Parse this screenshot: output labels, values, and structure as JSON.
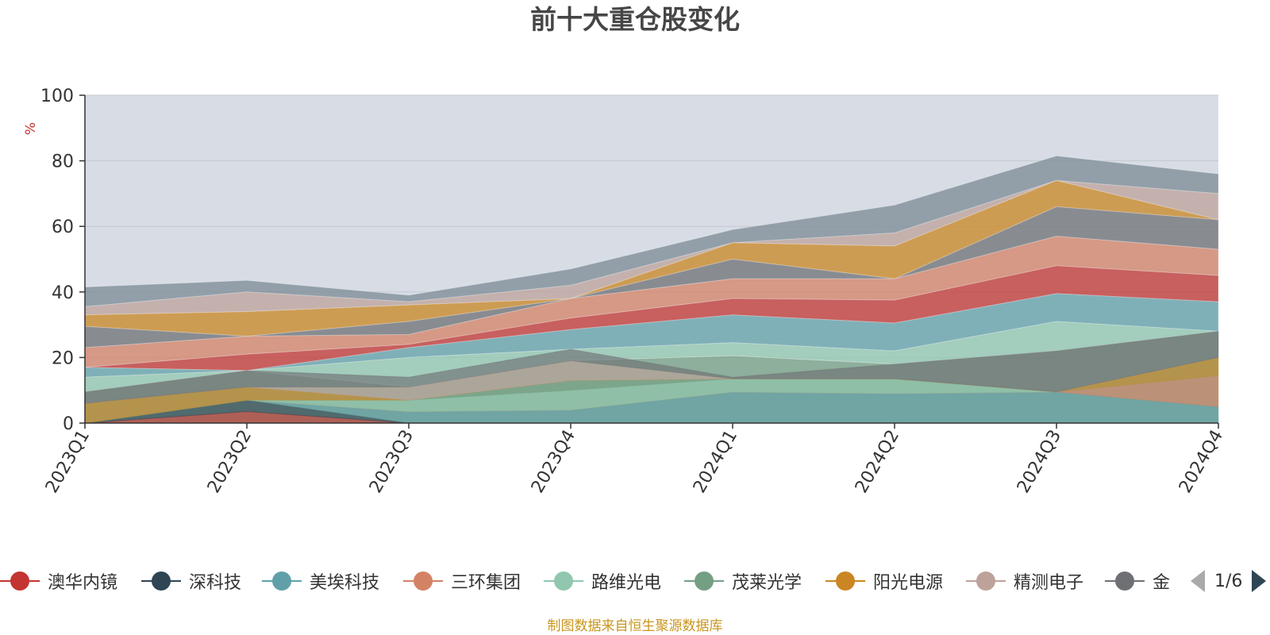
{
  "chart_data": {
    "type": "area",
    "title": "前十大重仓股变化",
    "ylabel": "%",
    "ylim": [
      0,
      100
    ],
    "yticks": [
      0,
      20,
      40,
      60,
      80,
      100
    ],
    "categories": [
      "2023Q1",
      "2023Q2",
      "2023Q3",
      "2023Q4",
      "2024Q1",
      "2024Q2",
      "2024Q3",
      "2024Q4"
    ],
    "stacked": true,
    "grid": true,
    "legend_position": "bottom",
    "series": [
      {
        "name": "澳华内镜",
        "color": "#c23531",
        "values": [
          0,
          3.5,
          0,
          0,
          0,
          0,
          0,
          0
        ]
      },
      {
        "name": "深科技",
        "color": "#2f4554",
        "values": [
          0,
          3.5,
          0,
          0,
          0,
          0,
          0,
          0
        ]
      },
      {
        "name": "美埃科技",
        "color": "#61a0a8",
        "values": [
          0,
          0,
          3.5,
          4,
          9.5,
          9,
          9.5,
          5
        ]
      },
      {
        "name": "三环集团",
        "color": "#d48265",
        "values": [
          0,
          0,
          0,
          0,
          0,
          0,
          0,
          9.5
        ]
      },
      {
        "name": "路维光电",
        "color": "#91c7ae",
        "values": [
          0,
          0,
          3.5,
          6,
          4,
          4.5,
          0,
          0
        ]
      },
      {
        "name": "茂莱光学",
        "color": "#749f83",
        "values": [
          0,
          0,
          0,
          3,
          0,
          0,
          0,
          0
        ]
      },
      {
        "name": "阳光电源",
        "color": "#ca8622",
        "values": [
          6,
          4,
          0,
          0,
          0,
          0,
          0,
          5.5
        ]
      },
      {
        "name": "精测电子",
        "color": "#bda29a",
        "values": [
          0,
          0,
          4,
          6,
          0,
          0,
          0,
          0
        ]
      },
      {
        "name": "金",
        "color": "#6e7074",
        "values": [
          3.5,
          5,
          3,
          3.5,
          0.5,
          4.5,
          12.5,
          8
        ]
      }
    ],
    "pager": "1/6",
    "source": "制图数据来自恒生聚源数据库"
  }
}
